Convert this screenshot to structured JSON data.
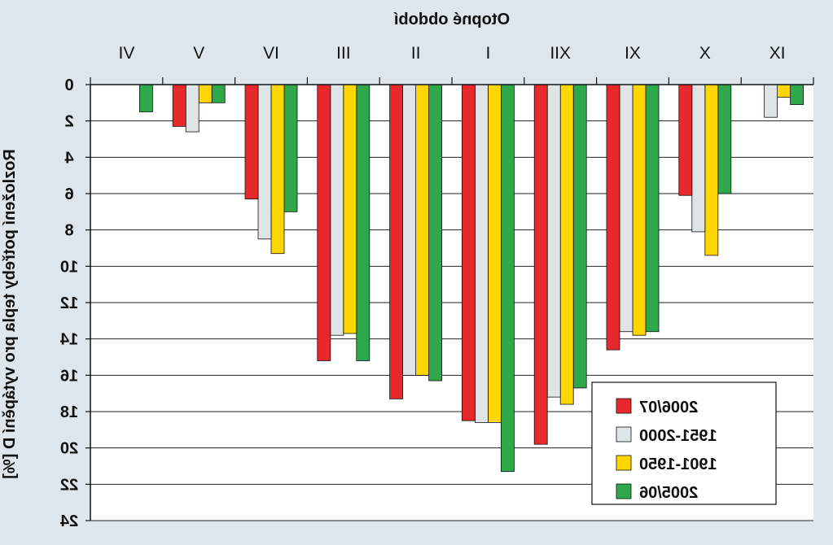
{
  "chart_data": {
    "type": "bar",
    "title": "",
    "xlabel": "Otopné období",
    "ylabel": "Rozložení potřeby tepla pro vytápění D [%]",
    "categories": [
      "IX",
      "X",
      "XI",
      "XII",
      "I",
      "II",
      "III",
      "IV",
      "V",
      "VI"
    ],
    "ylim": [
      0,
      24
    ],
    "yticks": [
      0,
      2,
      4,
      6,
      8,
      10,
      12,
      14,
      16,
      18,
      20,
      22,
      24
    ],
    "series": [
      {
        "name": "2005/06",
        "color": "#2ea84a",
        "values": [
          1.1,
          6.0,
          13.6,
          16.7,
          21.3,
          16.3,
          15.2,
          7.0,
          1.0,
          1.5
        ]
      },
      {
        "name": "1901-1950",
        "color": "#ffd600",
        "values": [
          0.7,
          9.4,
          13.8,
          17.6,
          18.6,
          16.0,
          13.7,
          9.3,
          1.0,
          null
        ]
      },
      {
        "name": "1951-2000",
        "color": "#dfe4e6",
        "values": [
          1.8,
          8.1,
          13.6,
          17.2,
          18.6,
          16.0,
          13.8,
          8.5,
          2.6,
          null
        ]
      },
      {
        "name": "2006/07",
        "color": "#e8292b",
        "values": [
          null,
          6.1,
          14.6,
          19.8,
          18.5,
          17.3,
          15.2,
          6.3,
          2.3,
          null
        ]
      }
    ],
    "legend_placement": "bottom-right",
    "grid": true
  }
}
